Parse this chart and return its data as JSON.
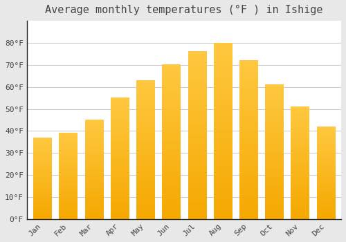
{
  "title": "Average monthly temperatures (°F ) in Ishige",
  "months": [
    "Jan",
    "Feb",
    "Mar",
    "Apr",
    "May",
    "Jun",
    "Jul",
    "Aug",
    "Sep",
    "Oct",
    "Nov",
    "Dec"
  ],
  "values": [
    37,
    39,
    45,
    55,
    63,
    70,
    76,
    80,
    72,
    61,
    51,
    42
  ],
  "bar_color_light": "#FFC840",
  "bar_color_dark": "#F5A800",
  "ylim": [
    0,
    90
  ],
  "yticks": [
    0,
    10,
    20,
    30,
    40,
    50,
    60,
    70,
    80
  ],
  "ytick_labels": [
    "0°F",
    "10°F",
    "20°F",
    "30°F",
    "40°F",
    "50°F",
    "60°F",
    "70°F",
    "80°F"
  ],
  "background_color": "#E8E8E8",
  "plot_bg_color": "#FFFFFF",
  "grid_color": "#CCCCCC",
  "title_fontsize": 11,
  "tick_fontsize": 8,
  "tick_color": "#444444",
  "spine_color": "#222222"
}
